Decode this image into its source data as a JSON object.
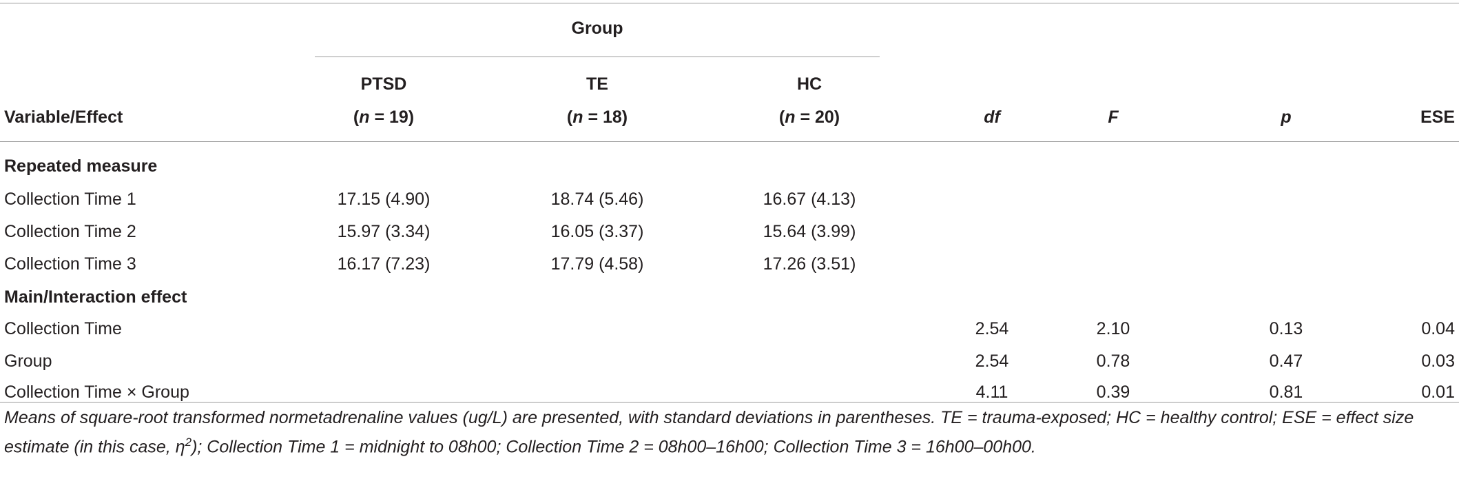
{
  "table": {
    "group_header": "Group",
    "columns": {
      "variable": "Variable/Effect",
      "ptsd": {
        "name": "PTSD",
        "n_prefix": "(",
        "n_var": "n",
        "n_suffix": " = 19)"
      },
      "te": {
        "name": "TE",
        "n_prefix": "(",
        "n_var": "n",
        "n_suffix": " = 18)"
      },
      "hc": {
        "name": "HC",
        "n_prefix": "(",
        "n_var": "n",
        "n_suffix": " = 20)"
      },
      "df": "df",
      "f": "F",
      "p": "p",
      "ese": "ESE"
    },
    "section_repeated": "Repeated measure",
    "repeated_rows": [
      {
        "label": "Collection Time 1",
        "ptsd": "17.15 (4.90)",
        "te": "18.74 (5.46)",
        "hc": "16.67 (4.13)"
      },
      {
        "label": "Collection Time 2",
        "ptsd": "15.97 (3.34)",
        "te": "16.05 (3.37)",
        "hc": "15.64 (3.99)"
      },
      {
        "label": "Collection Time 3",
        "ptsd": "16.17 (7.23)",
        "te": "17.79 (4.58)",
        "hc": "17.26 (3.51)"
      }
    ],
    "section_effects": "Main/Interaction effect",
    "effect_rows": [
      {
        "label": "Collection Time",
        "df": "2.54",
        "f": "2.10",
        "p": "0.13",
        "ese": "0.04"
      },
      {
        "label": "Group",
        "df": "2.54",
        "f": "0.78",
        "p": "0.47",
        "ese": "0.03"
      },
      {
        "label": "Collection Time × Group",
        "df": "4.11",
        "f": "0.39",
        "p": "0.81",
        "ese": "0.01"
      }
    ]
  },
  "footnote": {
    "part1": "Means of square-root transformed normetadrenaline values (ug/L) are presented, with standard deviations in parentheses. TE = trauma-exposed; HC = healthy control; ESE = effect size estimate (in this case, ",
    "eta": "η",
    "sup": "2",
    "part2": "); Collection Time 1 = midnight to 08h00; Collection Time 2 = 08h00–16h00; Collection Time 3 = 16h00–00h00."
  }
}
